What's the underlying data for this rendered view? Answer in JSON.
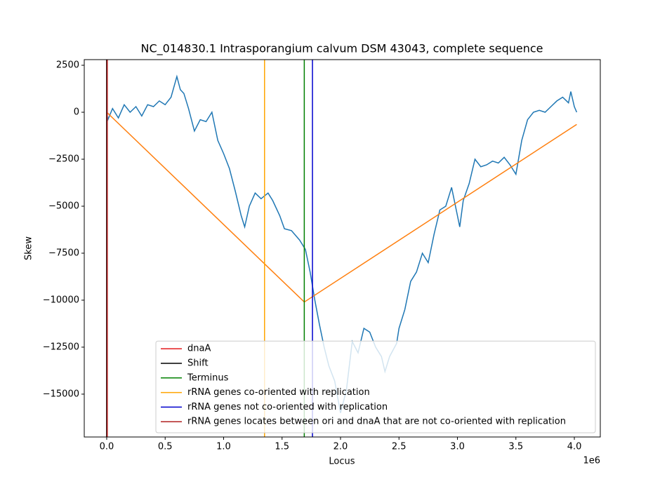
{
  "chart_data": {
    "type": "line",
    "title": "NC_014830.1 Intrasporangium calvum DSM 43043, complete sequence",
    "xlabel": "Locus",
    "ylabel": "Skew",
    "x_offset_text": "1e6",
    "xlim": [
      -192000,
      4222000
    ],
    "ylim": [
      -17280,
      2800
    ],
    "xticks": [
      {
        "value": 0,
        "label": "0.0"
      },
      {
        "value": 500000,
        "label": "0.5"
      },
      {
        "value": 1000000,
        "label": "1.0"
      },
      {
        "value": 1500000,
        "label": "1.5"
      },
      {
        "value": 2000000,
        "label": "2.0"
      },
      {
        "value": 2500000,
        "label": "2.5"
      },
      {
        "value": 3000000,
        "label": "3.0"
      },
      {
        "value": 3500000,
        "label": "3.5"
      },
      {
        "value": 4000000,
        "label": "4.0"
      }
    ],
    "yticks": [
      {
        "value": -15000,
        "label": "−15000"
      },
      {
        "value": -12500,
        "label": "−12500"
      },
      {
        "value": -10000,
        "label": "−10000"
      },
      {
        "value": -7500,
        "label": "−7500"
      },
      {
        "value": -5000,
        "label": "−5000"
      },
      {
        "value": -2500,
        "label": "−2500"
      },
      0,
      2500
    ],
    "legend": "lower right",
    "series": [
      {
        "color": "#1f77b4",
        "x": [
          0,
          10000,
          50000,
          100000,
          150000,
          200000,
          250000,
          300000,
          350000,
          400000,
          450000,
          500000,
          550000,
          600000,
          630000,
          660000,
          700000,
          750000,
          800000,
          850000,
          900000,
          950000,
          1000000,
          1050000,
          1100000,
          1150000,
          1180000,
          1220000,
          1270000,
          1320000,
          1380000,
          1420000,
          1480000,
          1520000,
          1580000,
          1650000,
          1700000,
          1740000,
          1780000,
          1820000,
          1860000,
          1900000,
          1950000,
          2000000,
          2050000,
          2100000,
          2150000,
          2200000,
          2250000,
          2300000,
          2350000,
          2380000,
          2420000,
          2480000,
          2500000,
          2550000,
          2600000,
          2650000,
          2700000,
          2750000,
          2800000,
          2850000,
          2900000,
          2950000,
          3000000,
          3020000,
          3050000,
          3100000,
          3150000,
          3200000,
          3250000,
          3300000,
          3350000,
          3400000,
          3450000,
          3500000,
          3550000,
          3600000,
          3650000,
          3700000,
          3750000,
          3800000,
          3850000,
          3900000,
          3950000,
          3970000,
          4000000,
          4020000
        ],
        "values": [
          0,
          -400,
          200,
          -300,
          400,
          0,
          300,
          -200,
          400,
          300,
          600,
          400,
          800,
          1900,
          1200,
          1000,
          200,
          -1000,
          -400,
          -500,
          0,
          -1500,
          -2200,
          -3000,
          -4200,
          -5500,
          -6100,
          -5000,
          -4300,
          -4600,
          -4300,
          -4700,
          -5500,
          -6200,
          -6300,
          -6800,
          -7300,
          -8500,
          -10000,
          -11300,
          -12500,
          -13500,
          -14300,
          -16000,
          -14800,
          -12200,
          -12800,
          -11500,
          -11700,
          -12500,
          -13000,
          -13800,
          -13000,
          -12300,
          -11500,
          -10500,
          -9000,
          -8500,
          -7500,
          -8000,
          -6500,
          -5200,
          -5000,
          -4000,
          -5500,
          -6100,
          -4700,
          -3800,
          -2500,
          -2900,
          -2800,
          -2600,
          -2700,
          -2400,
          -2800,
          -3300,
          -1500,
          -400,
          0,
          100,
          0,
          300,
          600,
          800,
          500,
          1100,
          300,
          0
        ]
      },
      {
        "color": "#ff7f0e",
        "x": [
          0,
          1690000,
          4020000
        ],
        "values": [
          0,
          -10100,
          -650
        ]
      }
    ],
    "vlines": [
      {
        "name": "dnaA",
        "color": "#e41a1c",
        "x": 0
      },
      {
        "name": "Shift",
        "color": "#000000",
        "x": 0
      },
      {
        "name": "Terminus",
        "color": "#008000",
        "x": 1690000
      },
      {
        "name": "rRNA genes co-oriented with replication",
        "color": "#ffa500",
        "x": 1350000
      },
      {
        "name": "rRNA genes not co-oriented with replication",
        "color": "#0000cd",
        "x": 1760000
      },
      {
        "name": "rRNA genes locates between ori and dnaA that are not co-oriented with replication",
        "color": "#b22222",
        "x": 5000
      }
    ]
  }
}
